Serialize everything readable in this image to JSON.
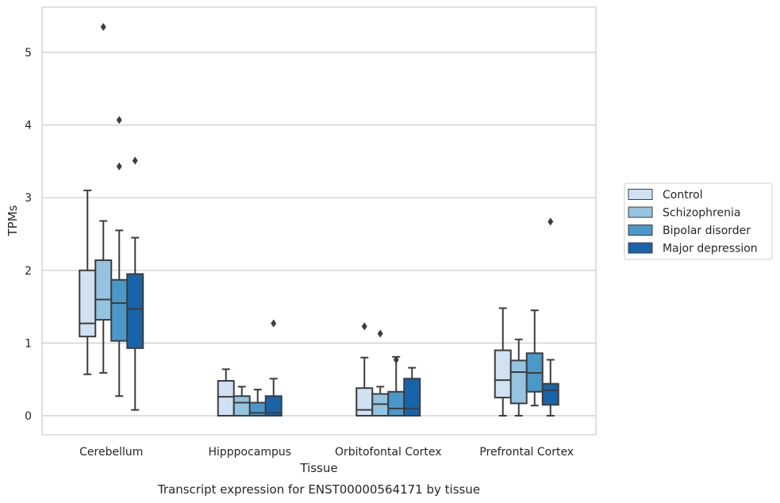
{
  "caption": "Transcript expression for ENST00000564171 by tissue",
  "chart_data": {
    "type": "box",
    "xlabel": "Tissue",
    "ylabel": "TPMs",
    "ylim": [
      -0.25,
      5.6
    ],
    "yticks": [
      0,
      1,
      2,
      3,
      4,
      5
    ],
    "grid": "horizontal",
    "legend_position": "right",
    "categories": [
      "Cerebellum",
      "Hipppocampus",
      "Orbitofontal Cortex",
      "Prefrontal Cortex"
    ],
    "series": [
      {
        "name": "Control",
        "color": "#d0e1f2",
        "boxes": [
          {
            "whislo": 0.57,
            "q1": 1.09,
            "med": 1.27,
            "q3": 2.0,
            "whishi": 3.1,
            "fliers": []
          },
          {
            "whislo": 0.0,
            "q1": 0.0,
            "med": 0.26,
            "q3": 0.48,
            "whishi": 0.64,
            "fliers": []
          },
          {
            "whislo": 0.0,
            "q1": 0.0,
            "med": 0.08,
            "q3": 0.38,
            "whishi": 0.8,
            "fliers": [
              1.23
            ]
          },
          {
            "whislo": 0.0,
            "q1": 0.25,
            "med": 0.49,
            "q3": 0.9,
            "whishi": 1.48,
            "fliers": []
          }
        ]
      },
      {
        "name": "Schizophrenia",
        "color": "#94c4df",
        "boxes": [
          {
            "whislo": 0.59,
            "q1": 1.32,
            "med": 1.6,
            "q3": 2.14,
            "whishi": 2.68,
            "fliers": [
              5.35
            ]
          },
          {
            "whislo": 0.0,
            "q1": 0.0,
            "med": 0.18,
            "q3": 0.27,
            "whishi": 0.4,
            "fliers": []
          },
          {
            "whislo": 0.0,
            "q1": 0.0,
            "med": 0.16,
            "q3": 0.3,
            "whishi": 0.4,
            "fliers": [
              1.13
            ]
          },
          {
            "whislo": 0.0,
            "q1": 0.17,
            "med": 0.6,
            "q3": 0.76,
            "whishi": 1.05,
            "fliers": []
          }
        ]
      },
      {
        "name": "Bipolar disorder",
        "color": "#4a98c9",
        "boxes": [
          {
            "whislo": 0.27,
            "q1": 1.03,
            "med": 1.55,
            "q3": 1.87,
            "whishi": 2.55,
            "fliers": [
              4.07,
              3.43
            ]
          },
          {
            "whislo": 0.0,
            "q1": 0.0,
            "med": 0.04,
            "q3": 0.18,
            "whishi": 0.36,
            "fliers": []
          },
          {
            "whislo": 0.0,
            "q1": 0.0,
            "med": 0.1,
            "q3": 0.33,
            "whishi": 0.81,
            "fliers": [
              0.77
            ]
          },
          {
            "whislo": 0.14,
            "q1": 0.33,
            "med": 0.59,
            "q3": 0.86,
            "whishi": 1.45,
            "fliers": []
          }
        ]
      },
      {
        "name": "Major depression",
        "color": "#1764ab",
        "boxes": [
          {
            "whislo": 0.08,
            "q1": 0.93,
            "med": 1.47,
            "q3": 1.95,
            "whishi": 2.45,
            "fliers": [
              3.51
            ]
          },
          {
            "whislo": 0.0,
            "q1": 0.0,
            "med": 0.04,
            "q3": 0.27,
            "whishi": 0.51,
            "fliers": [
              1.27
            ]
          },
          {
            "whislo": 0.0,
            "q1": 0.0,
            "med": 0.1,
            "q3": 0.51,
            "whishi": 0.66,
            "fliers": []
          },
          {
            "whislo": 0.0,
            "q1": 0.15,
            "med": 0.35,
            "q3": 0.44,
            "whishi": 0.77,
            "fliers": [
              2.67
            ]
          }
        ]
      }
    ]
  }
}
